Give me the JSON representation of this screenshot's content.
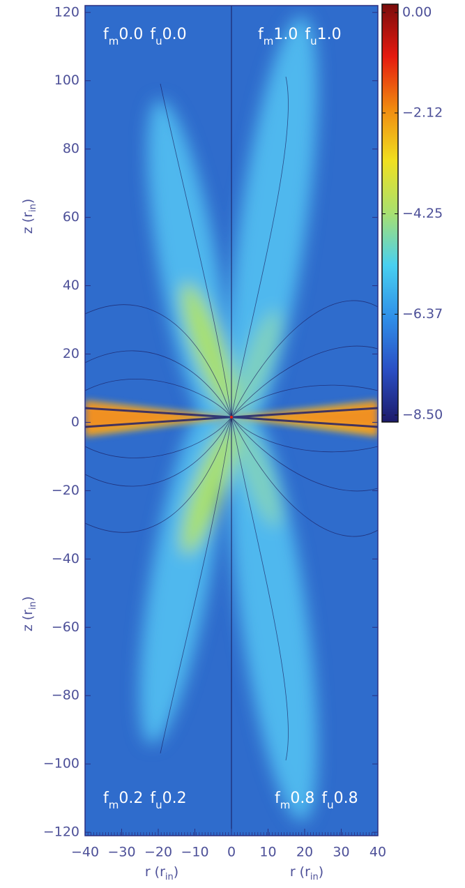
{
  "chart_data": {
    "type": "heatmap",
    "xlim": [
      -40,
      40
    ],
    "ylim": [
      -121,
      122
    ],
    "xticks": [
      {
        "value": -40,
        "label": "−40"
      },
      {
        "value": -30,
        "label": "−30"
      },
      {
        "value": -20,
        "label": "−20"
      },
      {
        "value": -10,
        "label": "−10"
      },
      0,
      10,
      20,
      30,
      40
    ],
    "yticks": [
      120,
      100,
      80,
      60,
      40,
      20,
      0,
      {
        "value": -20,
        "label": "−20"
      },
      {
        "value": -40,
        "label": "−40"
      },
      {
        "value": -60,
        "label": "−60"
      },
      {
        "value": -80,
        "label": "−80"
      },
      {
        "value": -100,
        "label": "−100"
      },
      {
        "value": -120,
        "label": "−120"
      }
    ],
    "ylabel_parts": [
      "z (r",
      "in",
      ")"
    ],
    "xlabel_parts": [
      "r (r",
      "in",
      ")"
    ],
    "symbols": {
      "f": "f",
      "m": "m",
      "u": "u"
    },
    "annotations": [
      {
        "m": "0.0",
        "u": "0.0"
      },
      {
        "m": "1.0",
        "u": "1.0"
      },
      {
        "m": "0.2",
        "u": "0.2"
      },
      {
        "m": "0.8",
        "u": "0.8"
      }
    ],
    "colorbar": {
      "lim": [
        -8.5,
        0
      ],
      "ticks": [
        {
          "value": 0,
          "label": "0.00"
        },
        {
          "value": -2.12,
          "label": "−2.12"
        },
        {
          "value": -4.25,
          "label": "−4.25"
        },
        {
          "value": -6.37,
          "label": "−6.37"
        },
        {
          "value": -8.5,
          "label": "−8.50"
        }
      ],
      "colors": [
        "#1c1a6a",
        "#2a4fc4",
        "#2f8fe8",
        "#48d0f0",
        "#a8e070",
        "#f0e020",
        "#f08a10",
        "#e51a10",
        "#7a0c0c"
      ]
    }
  }
}
